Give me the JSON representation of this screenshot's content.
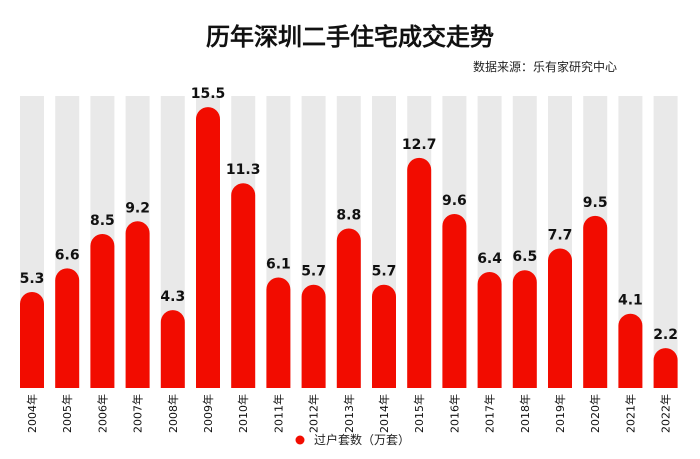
{
  "chart_data": {
    "type": "bar",
    "title": "历年深圳二手住宅成交走势",
    "source": "数据来源：乐有家研究中心",
    "categories": [
      "2004年",
      "2005年",
      "2006年",
      "2007年",
      "2008年",
      "2009年",
      "2010年",
      "2011年",
      "2012年",
      "2013年",
      "2014年",
      "2015年",
      "2016年",
      "2017年",
      "2018年",
      "2019年",
      "2020年",
      "2021年",
      "2022年"
    ],
    "series": [
      {
        "name": "过户套数（万套）",
        "values": [
          5.3,
          6.6,
          8.5,
          9.2,
          4.3,
          15.5,
          11.3,
          6.1,
          5.7,
          8.8,
          5.7,
          12.7,
          9.6,
          6.4,
          6.5,
          7.7,
          9.5,
          4.1,
          2.2
        ]
      }
    ],
    "value_labels": [
      "5.3",
      "6.6",
      "8.5",
      "9.2",
      "4.3",
      "15.5",
      "11.3",
      "6.1",
      "5.7",
      "8.8",
      "5.7",
      "12.7",
      "9.6",
      "6.4",
      "6.5",
      "7.7",
      "9.5",
      "4.1",
      "2.2"
    ],
    "ylim": [
      0,
      16
    ],
    "grid": false,
    "legend_position": "bottom",
    "colors": {
      "bar": "#f20c00",
      "background_column": "#e9e9e9"
    }
  }
}
